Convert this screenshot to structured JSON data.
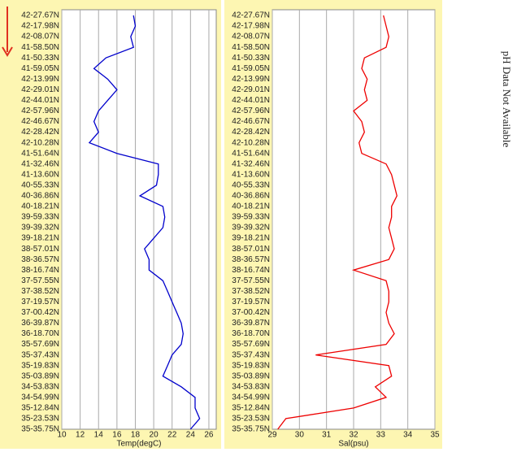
{
  "chart_data": [
    {
      "type": "line",
      "xlabel": "Temp(degC)",
      "orientation": "horizontal",
      "categories": [
        "42-27.67N",
        "42-17.98N",
        "42-08.07N",
        "41-58.50N",
        "41-50.33N",
        "41-59.05N",
        "42-13.99N",
        "42-29.01N",
        "42-44.01N",
        "42-57.96N",
        "42-46.67N",
        "42-28.42N",
        "42-10.28N",
        "41-51.64N",
        "41-32.46N",
        "41-13.60N",
        "40-55.33N",
        "40-36.86N",
        "40-18.21N",
        "39-59.33N",
        "39-39.32N",
        "39-18.21N",
        "38-57.01N",
        "38-36.57N",
        "38-16.74N",
        "37-57.55N",
        "37-38.52N",
        "37-19.57N",
        "37-00.42N",
        "36-39.87N",
        "36-18.70N",
        "35-57.69N",
        "35-37.43N",
        "35-19.83N",
        "35-03.89N",
        "34-53.83N",
        "34-54.99N",
        "35-12.84N",
        "35-23.53N",
        "35-35.75N"
      ],
      "values": [
        17.8,
        18,
        17.5,
        17.8,
        14.8,
        13.5,
        15,
        16,
        15,
        14,
        13.5,
        14,
        13,
        16,
        20.5,
        20.5,
        20.3,
        18.5,
        21,
        21.2,
        21,
        20,
        19,
        19.5,
        19.5,
        21,
        21.5,
        22,
        22.5,
        23,
        23.2,
        23,
        22,
        21.5,
        21,
        23,
        24.5,
        24.5,
        25,
        24
      ],
      "color": "#0000cc",
      "xlim": [
        10,
        26.8
      ],
      "xticks": [
        10,
        12,
        14,
        16,
        18,
        20,
        22,
        24,
        26
      ],
      "grid": true
    },
    {
      "type": "line",
      "xlabel": "Sal(psu)",
      "orientation": "horizontal",
      "categories": [
        "42-27.67N",
        "42-17.98N",
        "42-08.07N",
        "41-58.50N",
        "41-50.33N",
        "41-59.05N",
        "42-13.99N",
        "42-29.01N",
        "42-44.01N",
        "42-57.96N",
        "42-46.67N",
        "42-28.42N",
        "42-10.28N",
        "41-51.64N",
        "41-32.46N",
        "41-13.60N",
        "40-55.33N",
        "40-36.86N",
        "40-18.21N",
        "39-59.33N",
        "39-39.32N",
        "39-18.21N",
        "38-57.01N",
        "38-36.57N",
        "38-16.74N",
        "37-57.55N",
        "37-38.52N",
        "37-19.57N",
        "37-00.42N",
        "36-39.87N",
        "36-18.70N",
        "35-57.69N",
        "35-37.43N",
        "35-19.83N",
        "35-03.89N",
        "34-53.83N",
        "34-54.99N",
        "35-12.84N",
        "35-23.53N",
        "35-35.75N"
      ],
      "values": [
        33.1,
        33.2,
        33.3,
        33.2,
        32.4,
        32.3,
        32.5,
        32.4,
        32.5,
        32,
        32.3,
        32.4,
        32.2,
        32.3,
        33.2,
        33.4,
        33.5,
        33.6,
        33.4,
        33.4,
        33.3,
        33.4,
        33.5,
        33.3,
        32,
        33.2,
        33.3,
        33.3,
        33.2,
        33.3,
        33.5,
        33.2,
        30.6,
        33.3,
        33.4,
        32.8,
        33.2,
        32,
        29.5,
        29.2
      ],
      "color": "#ee0000",
      "xlim": [
        29,
        35
      ],
      "xticks": [
        29,
        30,
        31,
        32,
        33,
        34,
        35
      ],
      "grid": true
    }
  ],
  "note": "pH Data Not Available"
}
